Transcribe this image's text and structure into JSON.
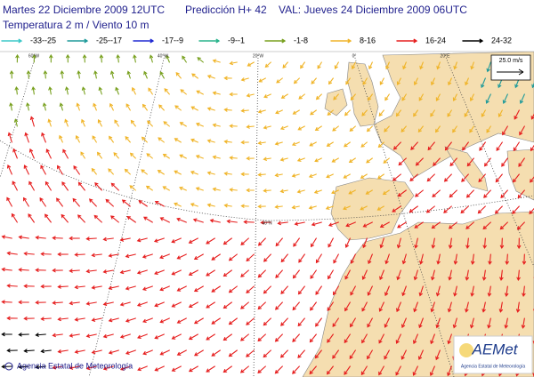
{
  "header": {
    "run": "Martes 22 Diciembre 2009 12UTC",
    "forecast": "Predicción H+ 42",
    "valid": "VAL: Jueves 24 Diciembre 2009 06UTC",
    "subtitle": "Temperatura 2 m / Viento  10 m"
  },
  "legend": [
    {
      "label": "-33--25",
      "color": "#3cc8c8"
    },
    {
      "label": "-25--17",
      "color": "#1e9a9a"
    },
    {
      "label": "-17--9",
      "color": "#1e28d2"
    },
    {
      "label": "-9--1",
      "color": "#28b48c"
    },
    {
      "label": "-1-8",
      "color": "#78a01e"
    },
    {
      "label": "8-16",
      "color": "#f0b428"
    },
    {
      "label": "16-24",
      "color": "#e61e1e"
    },
    {
      "label": "24-32",
      "color": "#000000"
    }
  ],
  "scale_label": "25.0 m/s",
  "graticule_labels": [
    "60°W",
    "40°W",
    "20°W",
    "0°",
    "20°E",
    "40°N"
  ],
  "footer": "Agencia Estatal de Meteorología",
  "logo": {
    "name": "AEMet",
    "subtitle": "Agencia Estatal de Meteorología"
  }
}
